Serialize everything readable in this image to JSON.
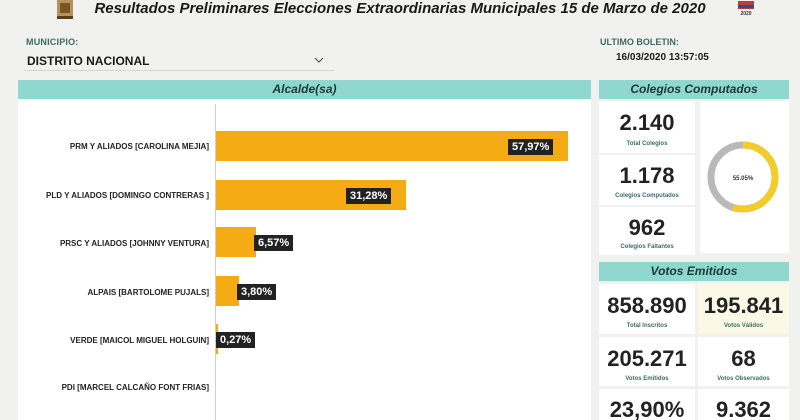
{
  "header": {
    "title": "Resultados Preliminares Elecciones Extraordinarias Municipales 15 de Marzo de 2020",
    "logo_right_text": "2020"
  },
  "filter": {
    "label": "MUNICIPIO:",
    "value": "DISTRITO NACIONAL"
  },
  "boletin": {
    "label": "ULTIMO BOLETIN:",
    "value": "16/03/2020 13:57:05"
  },
  "alcalde": {
    "title": "Alcalde(sa)",
    "candidates": [
      {
        "label": "PRM Y ALIADOS [CAROLINA MEJIA]",
        "pct_label": "57,97%",
        "pct": 57.97
      },
      {
        "label": "PLD Y ALIADOS [DOMINGO CONTRERAS ]",
        "pct_label": "31,28%",
        "pct": 31.28
      },
      {
        "label": "PRSC Y ALIADOS [JOHNNY VENTURA]",
        "pct_label": "6,57%",
        "pct": 6.57
      },
      {
        "label": "ALPAIS [BARTOLOME PUJALS]",
        "pct_label": "3,80%",
        "pct": 3.8
      },
      {
        "label": "VERDE [MAICOL MIGUEL HOLGUIN]",
        "pct_label": "0,27%",
        "pct": 0.27
      },
      {
        "label": "PDI [MARCEL CALCAÑO FONT FRIAS]",
        "pct_label": "",
        "pct": 0
      }
    ]
  },
  "colegios": {
    "title": "Colegios Computados",
    "total_value": "2.140",
    "total_caption": "Total Colegios",
    "computados_value": "1.178",
    "computados_caption": "Colegios Computados",
    "faltantes_value": "962",
    "faltantes_caption": "Colegios Faltantes",
    "donut_label": "55.05%",
    "donut_fraction": 0.5505,
    "colors": {
      "fill": "#f2cd2a",
      "track": "#b9b9b9"
    }
  },
  "votos": {
    "title": "Votos Emitidos",
    "inscritos_value": "858.890",
    "inscritos_caption": "Total Inscritos",
    "validos_value": "195.841",
    "validos_caption": "Votos Válidos",
    "emitidos_value": "205.271",
    "emitidos_caption": "Votos Emitidos",
    "observados_value": "68",
    "observados_caption": "Votos Observados",
    "participacion_value": "23,90%",
    "nulos_value": "9.362"
  },
  "colors": {
    "accent": "#8fd7cf",
    "bar": "#f4ab14",
    "label_bg": "#222222"
  }
}
